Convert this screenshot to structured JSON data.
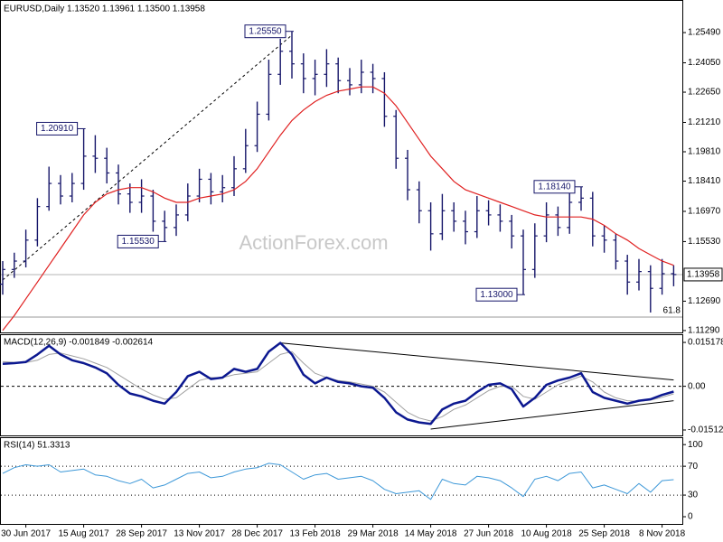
{
  "chart_data": [
    {
      "type": "ohlc",
      "title": "EURUSD,Daily  1.13520 1.13961 1.13500 1.13958",
      "watermark": "ActionForex.com",
      "categories": [
        null,
        null,
        "30 Jun 2017",
        null,
        null,
        null,
        null,
        "15 Aug 2017",
        null,
        null,
        null,
        null,
        "28 Sep 2017",
        null,
        null,
        null,
        null,
        "13 Nov 2017",
        null,
        null,
        null,
        null,
        "28 Dec 2017",
        null,
        null,
        null,
        null,
        "13 Feb 2018",
        null,
        null,
        null,
        null,
        "29 Mar 2018",
        null,
        null,
        null,
        null,
        "14 May 2018",
        null,
        null,
        null,
        null,
        "27 Jun 2018",
        null,
        null,
        null,
        null,
        "10 Aug 2018",
        null,
        null,
        null,
        null,
        "25 Sep 2018",
        null,
        null,
        null,
        null,
        "8 Nov 2018",
        null
      ],
      "open": [
        1.135,
        1.142,
        1.146,
        1.156,
        1.172,
        1.183,
        1.177,
        1.183,
        1.196,
        1.195,
        1.188,
        1.178,
        1.174,
        1.177,
        1.165,
        1.162,
        1.168,
        1.177,
        1.185,
        1.179,
        1.181,
        1.19,
        1.201,
        1.216,
        1.235,
        1.246,
        1.24,
        1.233,
        1.235,
        1.24,
        1.232,
        1.23,
        1.236,
        1.233,
        1.215,
        1.195,
        1.18,
        1.17,
        1.159,
        1.17,
        1.165,
        1.16,
        1.17,
        1.168,
        1.165,
        1.158,
        1.142,
        1.158,
        1.168,
        1.162,
        1.174,
        1.176,
        1.158,
        1.156,
        1.146,
        1.136,
        1.141,
        1.133,
        1.14
      ],
      "high": [
        1.146,
        1.15,
        1.161,
        1.176,
        1.191,
        1.187,
        1.188,
        1.2091,
        1.206,
        1.2,
        1.192,
        1.183,
        1.185,
        1.18,
        1.17,
        1.173,
        1.183,
        1.19,
        1.188,
        1.187,
        1.196,
        1.209,
        1.222,
        1.242,
        1.252,
        1.2555,
        1.245,
        1.242,
        1.247,
        1.243,
        1.238,
        1.242,
        1.24,
        1.236,
        1.218,
        1.199,
        1.184,
        1.174,
        1.178,
        1.174,
        1.17,
        1.177,
        1.175,
        1.173,
        1.168,
        1.161,
        1.164,
        1.174,
        1.172,
        1.179,
        1.1814,
        1.179,
        1.163,
        1.159,
        1.149,
        1.147,
        1.144,
        1.147,
        1.144
      ],
      "low": [
        1.13,
        1.138,
        1.143,
        1.153,
        1.17,
        1.173,
        1.174,
        1.18,
        1.188,
        1.183,
        1.173,
        1.169,
        1.169,
        1.16,
        1.1553,
        1.158,
        1.165,
        1.174,
        1.173,
        1.174,
        1.177,
        1.188,
        1.198,
        1.213,
        1.23,
        1.233,
        1.226,
        1.225,
        1.229,
        1.226,
        1.225,
        1.226,
        1.226,
        1.21,
        1.19,
        1.175,
        1.164,
        1.151,
        1.156,
        1.16,
        1.154,
        1.157,
        1.163,
        1.16,
        1.152,
        1.13,
        1.138,
        1.155,
        1.158,
        1.159,
        1.17,
        1.153,
        1.15,
        1.142,
        1.13,
        1.132,
        1.1215,
        1.13,
        1.134
      ],
      "close": [
        1.142,
        1.146,
        1.156,
        1.172,
        1.183,
        1.177,
        1.183,
        1.196,
        1.195,
        1.188,
        1.178,
        1.174,
        1.177,
        1.165,
        1.162,
        1.168,
        1.177,
        1.185,
        1.179,
        1.181,
        1.19,
        1.201,
        1.216,
        1.235,
        1.246,
        1.24,
        1.233,
        1.235,
        1.24,
        1.232,
        1.23,
        1.236,
        1.233,
        1.215,
        1.195,
        1.18,
        1.17,
        1.159,
        1.17,
        1.165,
        1.16,
        1.17,
        1.168,
        1.165,
        1.158,
        1.142,
        1.158,
        1.168,
        1.162,
        1.174,
        1.176,
        1.158,
        1.156,
        1.146,
        1.136,
        1.141,
        1.133,
        1.14,
        1.13958
      ],
      "color": "#16166a",
      "overlays": [
        {
          "color": "#e02020",
          "values": [
            1.113,
            1.12,
            1.128,
            1.136,
            1.144,
            1.152,
            1.16,
            1.168,
            1.174,
            1.178,
            1.18,
            1.181,
            1.181,
            1.179,
            1.176,
            1.174,
            1.174,
            1.176,
            1.177,
            1.178,
            1.18,
            1.184,
            1.19,
            1.198,
            1.206,
            1.213,
            1.218,
            1.222,
            1.225,
            1.227,
            1.228,
            1.229,
            1.229,
            1.226,
            1.22,
            1.212,
            1.204,
            1.196,
            1.19,
            1.184,
            1.18,
            1.178,
            1.176,
            1.174,
            1.172,
            1.17,
            1.168,
            1.167,
            1.167,
            1.167,
            1.167,
            1.166,
            1.163,
            1.159,
            1.156,
            1.152,
            1.149,
            1.146,
            1.144
          ]
        }
      ],
      "annotations": [
        {
          "label": "1.20910",
          "index": 7,
          "value": 1.2091
        },
        {
          "label": "1.15530",
          "index": 14,
          "value": 1.1553
        },
        {
          "label": "1.25550",
          "index": 25,
          "value": 1.2555
        },
        {
          "label": "1.13000",
          "index": 45,
          "value": 1.13
        },
        {
          "label": "1.18140",
          "index": 50,
          "value": 1.1814
        }
      ],
      "trend_lines": [
        {
          "x": [
            0,
            25
          ],
          "y": [
            1.137,
            1.2537
          ]
        }
      ],
      "fib_line": 1.1193,
      "fib_text": "61.8",
      "last_price": 1.13958,
      "ylim": [
        1.112,
        1.27
      ],
      "yticks": [
        {
          "value": 1.2549,
          "label": "1.25490"
        },
        {
          "value": 1.2405,
          "label": "1.24050"
        },
        {
          "value": 1.2265,
          "label": "1.22650"
        },
        {
          "value": 1.2121,
          "label": "1.21210"
        },
        {
          "value": 1.1981,
          "label": "1.19810"
        },
        {
          "value": 1.1841,
          "label": "1.18410"
        },
        {
          "value": 1.1697,
          "label": "1.16970"
        },
        {
          "value": 1.1553,
          "label": "1.15530"
        },
        {
          "value": 1.1269,
          "label": "1.12690"
        },
        {
          "value": 1.1129,
          "label": "1.11290"
        }
      ]
    },
    {
      "type": "line",
      "title": "MACD(12,26,9) -0.001849 -0.002614",
      "series": [
        {
          "color": "#0c1890",
          "width": 2.5,
          "values": [
            0.0078,
            0.008,
            0.0084,
            0.011,
            0.014,
            0.011,
            0.009,
            0.008,
            0.0065,
            0.0045,
            0.0005,
            -0.0025,
            -0.0035,
            -0.005,
            -0.006,
            -0.002,
            0.0035,
            0.005,
            0.0025,
            0.003,
            0.006,
            0.005,
            0.006,
            0.012,
            0.015,
            0.011,
            0.004,
            0.001,
            0.003,
            0.0015,
            0.001,
            0.0,
            -0.0005,
            -0.004,
            -0.009,
            -0.0115,
            -0.0125,
            -0.013,
            -0.008,
            -0.006,
            -0.005,
            -0.002,
            0.0005,
            0.001,
            -0.001,
            -0.007,
            -0.004,
            0.0005,
            0.002,
            0.003,
            0.0045,
            -0.002,
            -0.004,
            -0.005,
            -0.006,
            -0.005,
            -0.0045,
            -0.003,
            -0.001849
          ]
        },
        {
          "color": "#a0a0a0",
          "width": 1,
          "values": [
            0.0085,
            0.0083,
            0.0082,
            0.009,
            0.011,
            0.0115,
            0.0105,
            0.0095,
            0.008,
            0.0065,
            0.004,
            0.0015,
            -0.001,
            -0.003,
            -0.0045,
            -0.004,
            -0.001,
            0.002,
            0.003,
            0.003,
            0.004,
            0.0045,
            0.005,
            0.008,
            0.011,
            0.012,
            0.008,
            0.0045,
            0.003,
            0.002,
            0.0015,
            0.0008,
            0.0,
            -0.002,
            -0.0055,
            -0.009,
            -0.011,
            -0.012,
            -0.0105,
            -0.008,
            -0.0065,
            -0.004,
            -0.0015,
            0.0,
            0.0,
            -0.0035,
            -0.0045,
            -0.002,
            0.0005,
            0.002,
            0.0035,
            0.0015,
            -0.002,
            -0.004,
            -0.005,
            -0.0052,
            -0.0048,
            -0.0038,
            -0.002614
          ]
        }
      ],
      "trend_lines": [
        {
          "x": [
            24,
            58
          ],
          "y": [
            0.015,
            0.0022
          ]
        },
        {
          "x": [
            37,
            58
          ],
          "y": [
            -0.0148,
            -0.005
          ]
        }
      ],
      "levels": [
        0
      ],
      "ylim": [
        -0.017,
        0.0177
      ],
      "yticks": [
        0.015178,
        {
          "value": 0,
          "label": "0.00"
        },
        -0.015126
      ]
    },
    {
      "type": "line",
      "title": "RSI(14) 51.3313",
      "series": [
        {
          "color": "#3d98d8",
          "width": 1,
          "values": [
            60,
            68,
            72,
            70,
            72,
            62,
            64,
            66,
            58,
            56,
            50,
            46,
            52,
            40,
            44,
            52,
            60,
            62,
            54,
            56,
            62,
            66,
            68,
            74,
            72,
            62,
            52,
            58,
            60,
            52,
            54,
            56,
            50,
            38,
            32,
            34,
            36,
            24,
            52,
            46,
            44,
            56,
            54,
            50,
            40,
            28,
            52,
            56,
            50,
            60,
            62,
            40,
            44,
            38,
            32,
            46,
            34,
            50,
            51.3313
          ]
        }
      ],
      "levels": [
        30,
        70
      ],
      "ylim": [
        -10,
        109
      ],
      "yticks": [
        0,
        30,
        70,
        100
      ]
    }
  ]
}
